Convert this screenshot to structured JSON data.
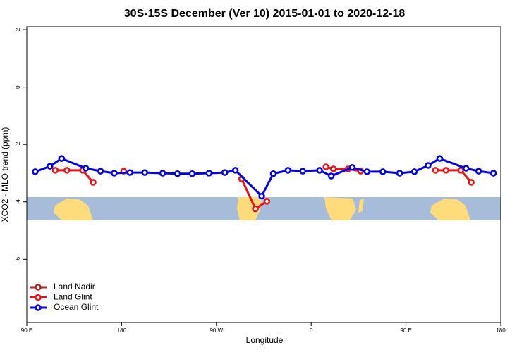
{
  "chart_data": {
    "type": "line",
    "title": "30S-15S December (Ver 10)   2015-01-01 to 2020-12-18",
    "x_label": "Longitude",
    "y_label": "XCO2 - MLO trend (ppm)",
    "xlim": [
      90,
      540
    ],
    "ylim": [
      -8.2,
      2.1
    ],
    "xticks": [
      {
        "value": 90,
        "label": "90 E"
      },
      180,
      {
        "value": 270,
        "label": "90 W"
      },
      {
        "value": 360,
        "label": "0"
      },
      {
        "value": 450,
        "label": "90 E"
      },
      180
    ],
    "yticks": [
      -6,
      -4,
      -2,
      0,
      2
    ],
    "legend": "bottom-left",
    "series": [
      {
        "name": "Land Nadir",
        "color": "#a52a2a",
        "x": [],
        "values": []
      },
      {
        "name": "Land Glint",
        "color": "#ee1111",
        "x": [
          117,
          128,
          143,
          153,
          160,
          182,
          290,
          294,
          307,
          318,
          365,
          374,
          381,
          395,
          407,
          470,
          478,
          488,
          502,
          512
        ],
        "values": [
          -2.9,
          -2.9,
          -2.9,
          -3.32,
          null,
          -2.93,
          null,
          -3.2,
          -4.24,
          -3.98,
          null,
          -2.78,
          -2.85,
          -2.85,
          -2.93,
          null,
          -2.9,
          -2.9,
          -2.9,
          -3.32
        ]
      },
      {
        "name": "Ocean Glint",
        "color": "#0000ee",
        "x": [
          98,
          112,
          123,
          146,
          160,
          173,
          188,
          202,
          219,
          233,
          247,
          263,
          278,
          288,
          313,
          324,
          338,
          352,
          368,
          379,
          399,
          413,
          428,
          444,
          458,
          471,
          482,
          507,
          519,
          533
        ],
        "values": [
          -2.95,
          -2.76,
          -2.49,
          -2.83,
          -2.93,
          -3.0,
          -2.98,
          -2.98,
          -3.0,
          -3.02,
          -3.02,
          -3.0,
          -2.98,
          -2.9,
          -3.8,
          -3.02,
          -2.9,
          -2.93,
          -2.9,
          -3.1,
          -2.8,
          -2.95,
          -2.95,
          -3.0,
          -2.95,
          -2.73,
          -2.49,
          -2.83,
          -2.93,
          -3.0
        ]
      }
    ]
  }
}
